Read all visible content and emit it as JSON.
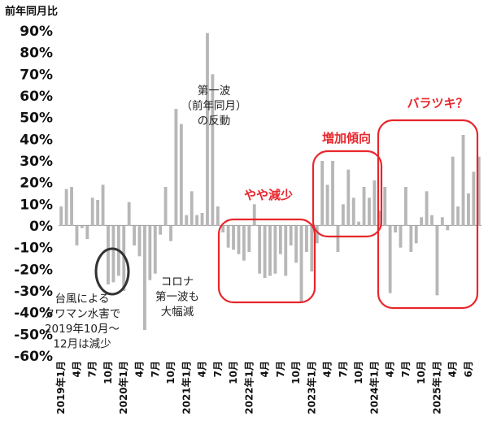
{
  "chart_data": {
    "type": "bar",
    "ylabel": "前年同月比",
    "ylim": [
      -60,
      90
    ],
    "y_ticks": [
      "90%",
      "80%",
      "70%",
      "60%",
      "50%",
      "40%",
      "30%",
      "20%",
      "10%",
      "0%",
      "-10%",
      "-20%",
      "-30%",
      "-40%",
      "-50%",
      "-60%"
    ],
    "x_tick_labels": [
      "2019年1月",
      "4月",
      "7月",
      "10月",
      "2020年1月",
      "4月",
      "7月",
      "10月",
      "2021年1月",
      "4月",
      "7月",
      "10月",
      "2022年1月",
      "4月",
      "7月",
      "10月",
      "2023年1月",
      "4月",
      "7月",
      "10月",
      "2024年1月",
      "4月",
      "7月",
      "10月",
      "2025年1月",
      "4月",
      "6月"
    ],
    "series": [
      {
        "values": [
          9,
          17,
          18,
          -9,
          -1,
          -6,
          13,
          12,
          19,
          -27,
          -26,
          -23,
          -30,
          11,
          -9,
          -14,
          -48,
          -25,
          -22,
          -4,
          18,
          -7,
          54,
          47,
          5,
          16,
          5,
          6,
          89,
          70,
          9,
          -3,
          -10,
          -11,
          -13,
          -16,
          -12,
          10,
          -22,
          -24,
          -23,
          -22,
          -13,
          -23,
          -9,
          -17,
          -35,
          -12,
          -21,
          -8,
          30,
          19,
          30,
          -12,
          10,
          26,
          13,
          2,
          18,
          13,
          21,
          7,
          18,
          -31,
          -3,
          -10,
          18,
          -12,
          -8,
          4,
          16,
          5,
          -32,
          4,
          -2,
          32,
          9,
          42,
          15,
          25,
          32
        ]
      }
    ],
    "annotations": [
      {
        "lines": [
          "台風による",
          "タワマン水害で",
          "2019年10月～",
          "12月は減少"
        ]
      },
      {
        "lines": [
          "コロナ",
          "第一波も",
          "大幅減"
        ]
      },
      {
        "lines": [
          "第一波",
          "（前年同月）",
          "の反動"
        ]
      },
      {
        "lines": [
          "やや減少"
        ]
      },
      {
        "lines": [
          "増加傾向"
        ]
      },
      {
        "lines": [
          "バラツキ？"
        ]
      }
    ],
    "colors": {
      "bar": "#b7b7b7",
      "highlight": "#e8262c",
      "circle": "#333333"
    }
  }
}
